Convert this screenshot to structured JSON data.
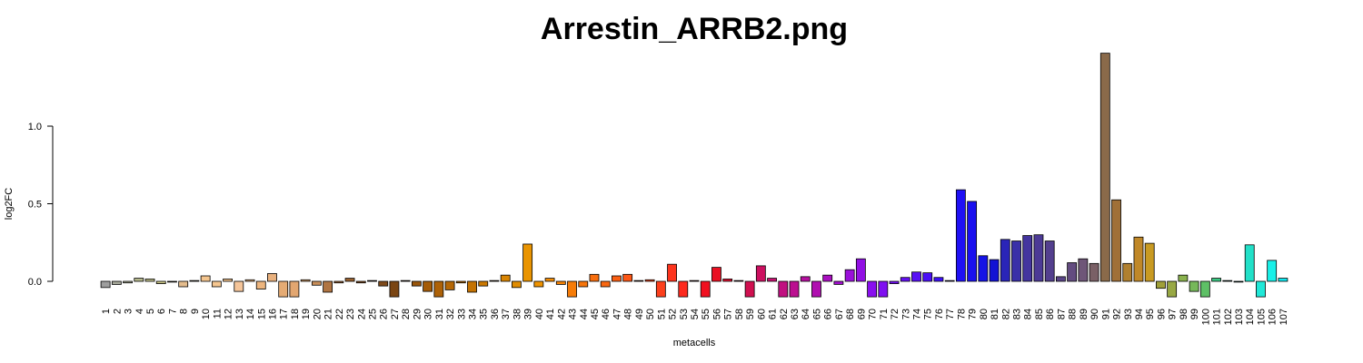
{
  "chart_data": {
    "type": "bar",
    "title": "Arrestin_ARRB2.png",
    "xlabel": "metacells",
    "ylabel": "log2FC",
    "ylim": [
      -0.1,
      1.5
    ],
    "yticks": [
      0.0,
      0.5,
      1.0
    ],
    "ytick_labels": [
      "0.0",
      "0.5",
      "1.0"
    ],
    "grid": false,
    "categories": [
      "1",
      "2",
      "3",
      "4",
      "5",
      "6",
      "7",
      "8",
      "9",
      "10",
      "11",
      "12",
      "13",
      "14",
      "15",
      "16",
      "17",
      "18",
      "19",
      "20",
      "21",
      "22",
      "23",
      "24",
      "25",
      "26",
      "27",
      "28",
      "29",
      "30",
      "31",
      "32",
      "33",
      "34",
      "35",
      "36",
      "37",
      "38",
      "39",
      "40",
      "41",
      "42",
      "43",
      "44",
      "45",
      "46",
      "47",
      "48",
      "49",
      "50",
      "51",
      "52",
      "53",
      "54",
      "55",
      "56",
      "57",
      "58",
      "59",
      "60",
      "61",
      "62",
      "63",
      "64",
      "65",
      "66",
      "67",
      "68",
      "69",
      "70",
      "71",
      "72",
      "73",
      "74",
      "75",
      "76",
      "77",
      "78",
      "79",
      "80",
      "81",
      "82",
      "83",
      "84",
      "85",
      "86",
      "87",
      "88",
      "89",
      "90",
      "91",
      "92",
      "93",
      "94",
      "95",
      "96",
      "97",
      "98",
      "99",
      "100",
      "101",
      "102",
      "103",
      "104",
      "105",
      "106",
      "107"
    ],
    "values": [
      -0.04,
      -0.02,
      -0.01,
      0.02,
      0.015,
      -0.015,
      -0.005,
      -0.035,
      0.005,
      0.035,
      -0.035,
      0.015,
      -0.065,
      0.01,
      -0.05,
      0.05,
      -0.1,
      -0.1,
      0.01,
      -0.025,
      -0.07,
      -0.01,
      0.02,
      -0.01,
      0.005,
      -0.03,
      -0.1,
      0.005,
      -0.03,
      -0.065,
      -0.1,
      -0.055,
      -0.01,
      -0.07,
      -0.03,
      0.005,
      0.04,
      -0.04,
      0.24,
      -0.035,
      0.02,
      -0.02,
      -0.1,
      -0.035,
      0.045,
      -0.035,
      0.035,
      0.045,
      0.005,
      0.01,
      -0.1,
      0.11,
      -0.1,
      0.005,
      -0.1,
      0.09,
      0.015,
      0.005,
      -0.1,
      0.1,
      0.02,
      -0.1,
      -0.1,
      0.03,
      -0.1,
      0.04,
      -0.02,
      0.075,
      0.145,
      -0.1,
      -0.1,
      -0.015,
      0.025,
      0.06,
      0.055,
      0.025,
      0.005,
      0.59,
      0.515,
      0.165,
      0.14,
      0.27,
      0.26,
      0.295,
      0.3,
      0.26,
      0.03,
      0.12,
      0.145,
      0.115,
      1.47,
      0.525,
      0.115,
      0.285,
      0.245,
      -0.045,
      -0.1,
      0.04,
      -0.065,
      -0.1,
      0.02,
      0.005,
      -0.005,
      0.235,
      -0.1,
      0.135,
      0.02
    ],
    "colors": [
      "#9e9e9e",
      "#a6a89a",
      "#aeb29a",
      "#b6b98d",
      "#bfbf8a",
      "#c8c486",
      "#d5c28c",
      "#e4bc8d",
      "#f1c38f",
      "#f4c58e",
      "#f5c690",
      "#f0c08a",
      "#f5c59a",
      "#f0b884",
      "#edb57e",
      "#e9b17e",
      "#e5ab74",
      "#e2a670",
      "#d9a068",
      "#c98f5a",
      "#b07543",
      "#a86e3c",
      "#98602e",
      "#8f5727",
      "#87501f",
      "#7f4a1a",
      "#7a4512",
      "#8c500d",
      "#9a560b",
      "#a45b08",
      "#ad6108",
      "#b56706",
      "#bd6d05",
      "#c47303",
      "#cb7902",
      "#d17f02",
      "#d98502",
      "#e08c01",
      "#e99401",
      "#ef9301",
      "#f28b03",
      "#f48306",
      "#f67c08",
      "#f7750b",
      "#f86e0e",
      "#f96711",
      "#fa5f13",
      "#fb5716",
      "#fb4f18",
      "#fc471b",
      "#fc3f1c",
      "#fd341d",
      "#fd2a1e",
      "#f82020",
      "#f01020",
      "#ea1022",
      "#e01030",
      "#d81040",
      "#d01050",
      "#cc1060",
      "#c61070",
      "#c01080",
      "#bb1090",
      "#b610a0",
      "#b010b0",
      "#a910c0",
      "#a110cd",
      "#9a10da",
      "#9210e4",
      "#8910ee",
      "#7f10f0",
      "#7210f2",
      "#6510f4",
      "#5810f5",
      "#4b10f6",
      "#3e10f7",
      "#3310f8",
      "#1f10f5",
      "#1a10ef",
      "#1514e6",
      "#1212d4",
      "#2a25b8",
      "#3a30a8",
      "#44359f",
      "#4c3a96",
      "#533f8e",
      "#594487",
      "#634c80",
      "#6e5678",
      "#7a6066",
      "#8a6a4a",
      "#a07038",
      "#b08030",
      "#c08828",
      "#c89a22",
      "#a0a038",
      "#98a844",
      "#8ab24e",
      "#76b85a",
      "#5ec066",
      "#3ac882",
      "#22d0a0",
      "#20d8b8",
      "#22e0c8",
      "#20e8d8",
      "#18f0e8",
      "#10e8f0"
    ]
  }
}
